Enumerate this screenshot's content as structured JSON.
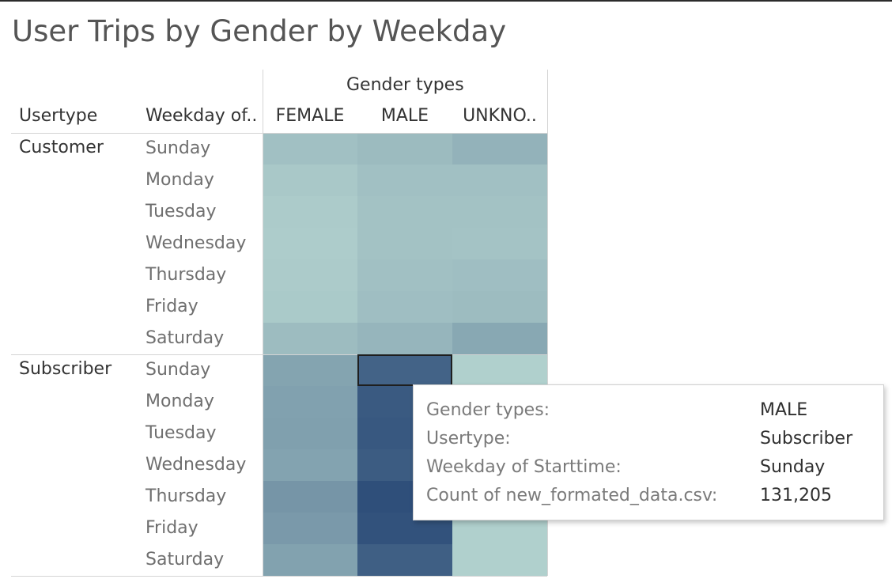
{
  "title": "User Trips by Gender by Weekday",
  "headers": {
    "columns_group": "Gender types",
    "usertype": "Usertype",
    "weekday": "Weekday of.."
  },
  "chart_data": {
    "type": "heatmap",
    "title": "User Trips by Gender by Weekday",
    "columns": [
      "FEMALE",
      "MALE",
      "UNKNO.."
    ],
    "row_groups": [
      {
        "name": "Customer",
        "rows": [
          "Sunday",
          "Monday",
          "Tuesday",
          "Wednesday",
          "Thursday",
          "Friday",
          "Saturday"
        ],
        "values": [
          [
            9000,
            12000,
            18000
          ],
          [
            5000,
            9000,
            9000
          ],
          [
            4000,
            8000,
            8000
          ],
          [
            3500,
            8000,
            7500
          ],
          [
            4000,
            9000,
            10000
          ],
          [
            4500,
            10000,
            11000
          ],
          [
            11000,
            16000,
            27000
          ]
        ]
      },
      {
        "name": "Subscriber",
        "rows": [
          "Sunday",
          "Monday",
          "Tuesday",
          "Wednesday",
          "Thursday",
          "Friday",
          "Saturday"
        ],
        "values": [
          [
            31000,
            131205,
            2500
          ],
          [
            34000,
            150000,
            2500
          ],
          [
            35000,
            155000,
            2500
          ],
          [
            32000,
            145000,
            2500
          ],
          [
            47000,
            175000,
            2500
          ],
          [
            42000,
            168000,
            2500
          ],
          [
            33000,
            139000,
            2500
          ]
        ]
      }
    ],
    "color_range": [
      "#c2e1d8",
      "#2f4f7a"
    ],
    "highlighted": {
      "group": 1,
      "row": 0,
      "col": 1
    }
  },
  "tooltip": {
    "rows": [
      {
        "key": "Gender types:",
        "value": "MALE"
      },
      {
        "key": "Usertype:",
        "value": "Subscriber"
      },
      {
        "key": "Weekday of Starttime:",
        "value": "Sunday"
      },
      {
        "key": "Count of new_formated_data.csv:",
        "value": "131,205"
      }
    ]
  }
}
